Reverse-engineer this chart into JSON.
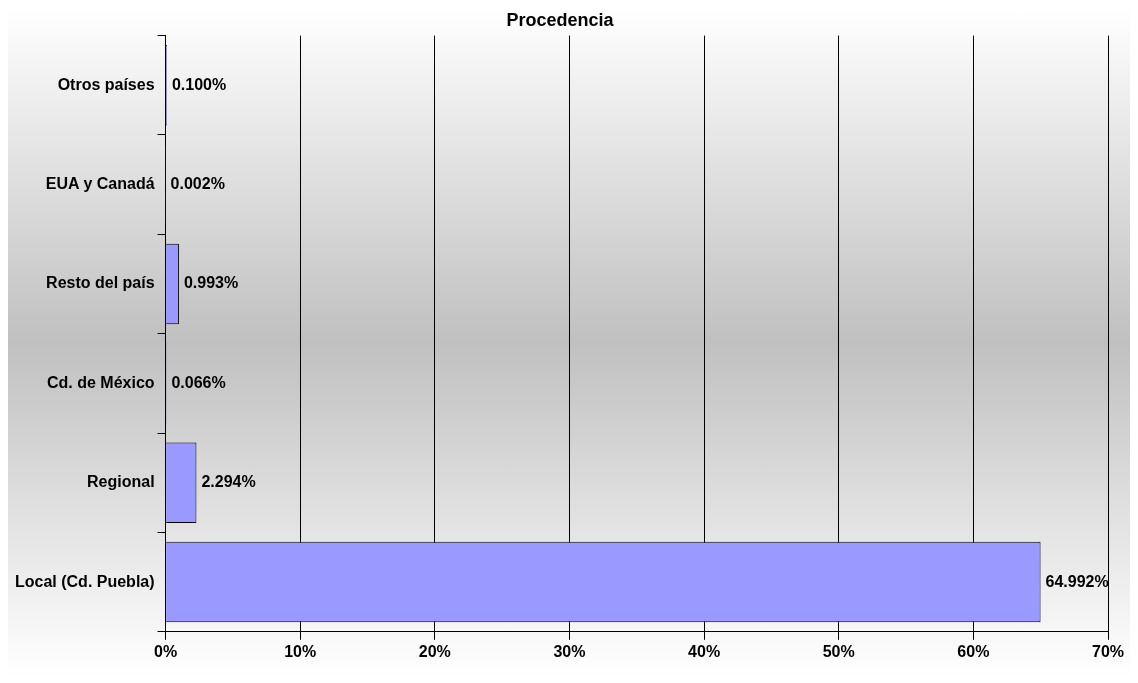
{
  "chart_data": {
    "type": "bar",
    "orientation": "horizontal",
    "title": "Procedencia",
    "categories": [
      "Otros países",
      "EUA y Canadá",
      "Resto del país",
      "Cd. de México",
      "Regional",
      "Local (Cd. Puebla)"
    ],
    "values": [
      0.1,
      0.002,
      0.993,
      0.066,
      2.294,
      64.992
    ],
    "value_labels": [
      "0.100%",
      "0.002%",
      "0.993%",
      "0.066%",
      "2.294%",
      "64.992%"
    ],
    "color": "#9999ff",
    "xlim": [
      0,
      70
    ],
    "xticks": [
      {
        "value": 0,
        "label": "0%"
      },
      {
        "value": 10,
        "label": "10%"
      },
      {
        "value": 20,
        "label": "20%"
      },
      {
        "value": 30,
        "label": "30%"
      },
      {
        "value": 40,
        "label": "40%"
      },
      {
        "value": 50,
        "label": "50%"
      },
      {
        "value": 60,
        "label": "60%"
      },
      {
        "value": 70,
        "label": "70%"
      }
    ],
    "grid": "x",
    "legend": false
  }
}
